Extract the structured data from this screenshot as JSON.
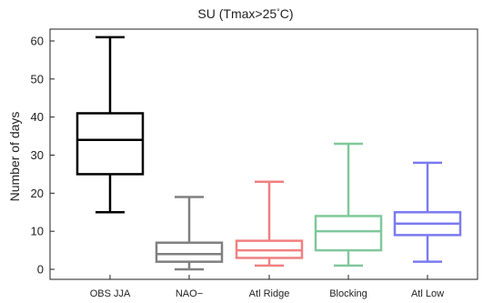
{
  "chart_data": {
    "type": "box",
    "title_main": "SU (Tmax>25",
    "title_degree": "°",
    "title_end": "C)",
    "ylabel": "Number of days",
    "ylim": [
      -2,
      64
    ],
    "yticks": [
      0,
      10,
      20,
      30,
      40,
      50,
      60
    ],
    "grid": false,
    "categories": [
      "OBS JJA",
      "NAO−",
      "Atl Ridge",
      "Blocking",
      "Atl Low"
    ],
    "boxes": [
      {
        "category": "OBS JJA",
        "color": "#000000",
        "whisker_low": 15,
        "q1": 25,
        "median": 34,
        "q3": 41,
        "whisker_high": 61
      },
      {
        "category": "NAO−",
        "color": "#808080",
        "whisker_low": 0,
        "q1": 2,
        "median": 4,
        "q3": 7,
        "whisker_high": 19
      },
      {
        "category": "Atl Ridge",
        "color": "#f08080",
        "whisker_low": 1,
        "q1": 3,
        "median": 5,
        "q3": 7.5,
        "whisker_high": 23
      },
      {
        "category": "Blocking",
        "color": "#80c89a",
        "whisker_low": 1,
        "q1": 5,
        "median": 10,
        "q3": 14,
        "whisker_high": 33
      },
      {
        "category": "Atl Low",
        "color": "#7b7bf0",
        "whisker_low": 2,
        "q1": 9,
        "median": 12,
        "q3": 15,
        "whisker_high": 28
      }
    ]
  }
}
